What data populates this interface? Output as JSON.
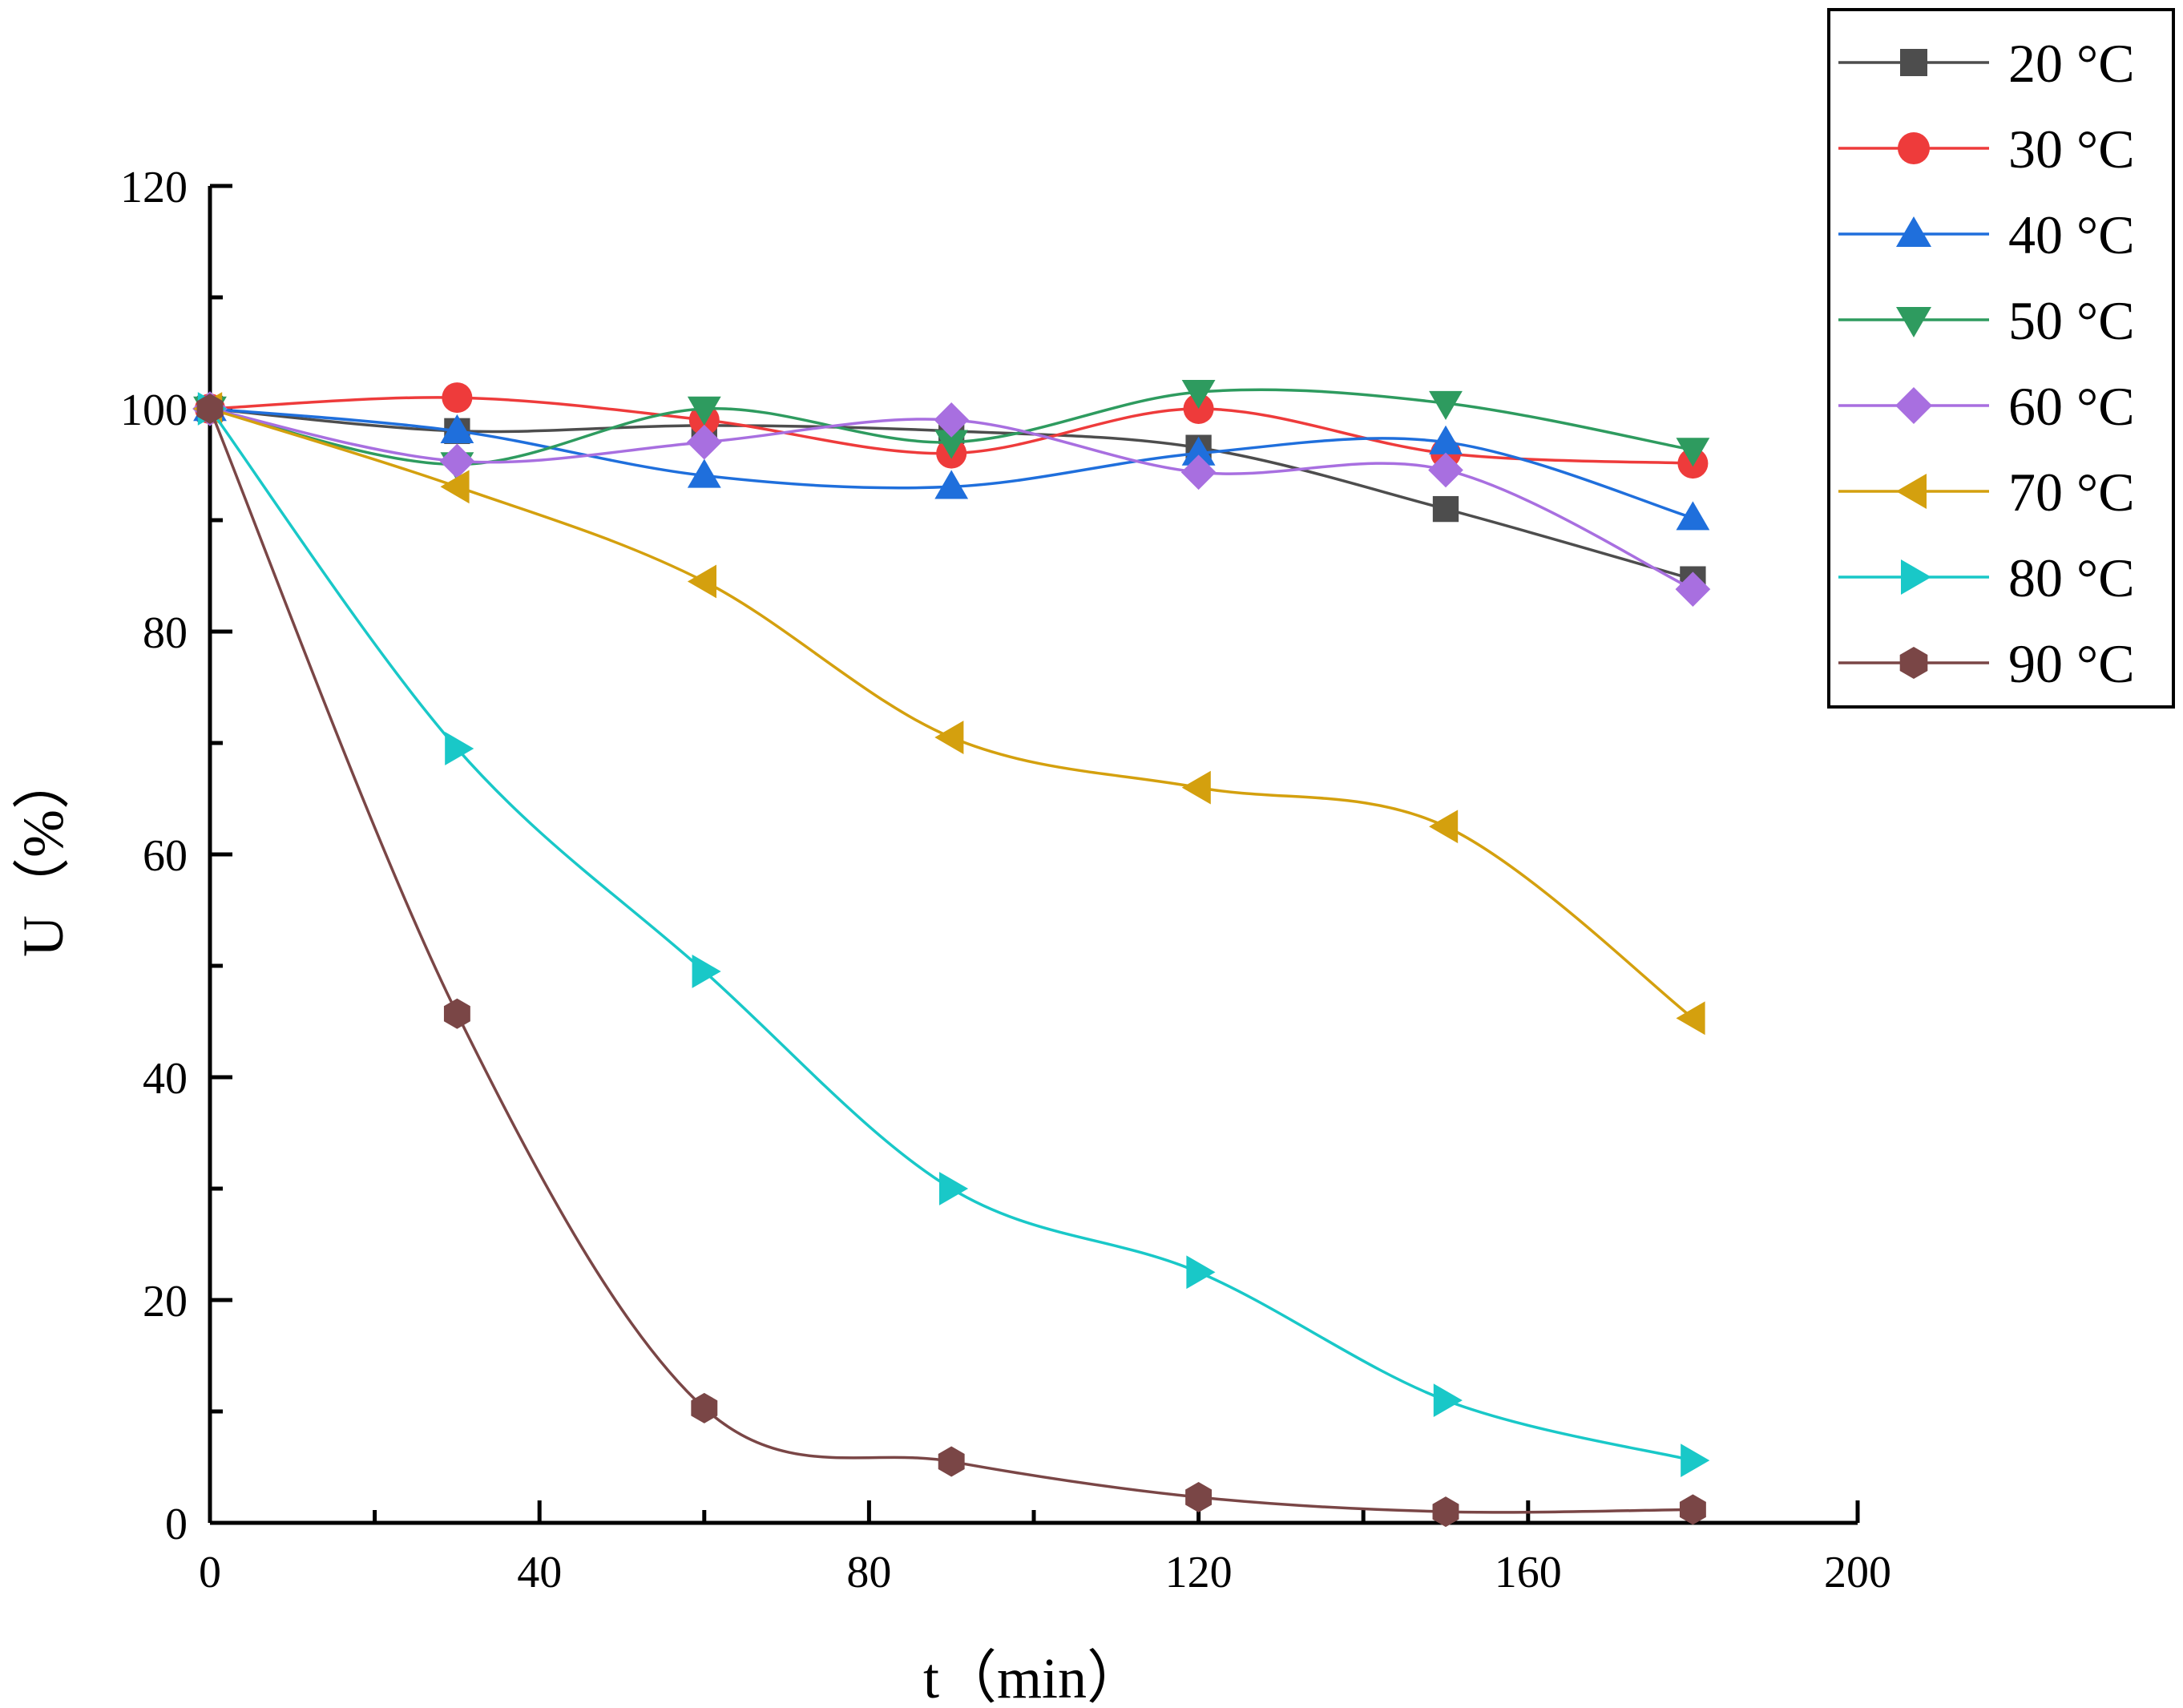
{
  "chart_data": {
    "type": "line",
    "title": "",
    "xlabel": "t（min）",
    "ylabel": "U（%）",
    "xlim": [
      0,
      200
    ],
    "ylim": [
      0,
      120
    ],
    "x_ticks": [
      0,
      40,
      80,
      120,
      160,
      200
    ],
    "y_ticks": [
      0,
      20,
      40,
      60,
      80,
      100,
      120
    ],
    "x_ticks_labels": [
      "0",
      "40",
      "80",
      "120",
      "160",
      "200"
    ],
    "y_ticks_labels": [
      "0",
      "20",
      "40",
      "60",
      "80",
      "100",
      "120"
    ],
    "legend_position": "top-right, outside plot",
    "x": [
      0,
      30,
      60,
      90,
      120,
      150,
      180
    ],
    "series": [
      {
        "name": "20 °C",
        "color": "#4d4d4d",
        "marker": "square",
        "values": [
          100,
          98,
          98.5,
          98,
          96.5,
          91,
          84.7
        ]
      },
      {
        "name": "30 °C",
        "color": "#ee3b3b",
        "marker": "circle",
        "values": [
          100,
          101,
          99,
          96,
          100,
          96,
          95.1
        ]
      },
      {
        "name": "40 °C",
        "color": "#1f6fdc",
        "marker": "triangle-up",
        "values": [
          100,
          98,
          94,
          93,
          96,
          97,
          90.2
        ]
      },
      {
        "name": "50 °C",
        "color": "#2e9b5f",
        "marker": "triangle-down",
        "values": [
          100,
          95,
          100,
          97,
          101.5,
          100.5,
          96.3
        ]
      },
      {
        "name": "60 °C",
        "color": "#a86fe0",
        "marker": "diamond",
        "values": [
          100,
          95.3,
          97,
          99,
          94.3,
          94.5,
          83.8
        ]
      },
      {
        "name": "70 °C",
        "color": "#d4a00e",
        "marker": "triangle-left",
        "values": [
          100,
          93,
          84.5,
          70.5,
          66,
          62.5,
          45.3
        ]
      },
      {
        "name": "80 °C",
        "color": "#19c8c8",
        "marker": "triangle-right",
        "values": [
          100,
          69.5,
          49.5,
          30,
          22.5,
          11,
          5.6
        ]
      },
      {
        "name": "90 °C",
        "color": "#7a4646",
        "marker": "hexagon",
        "values": [
          100,
          45.7,
          10.3,
          5.5,
          2.3,
          1.0,
          1.2
        ]
      }
    ]
  }
}
